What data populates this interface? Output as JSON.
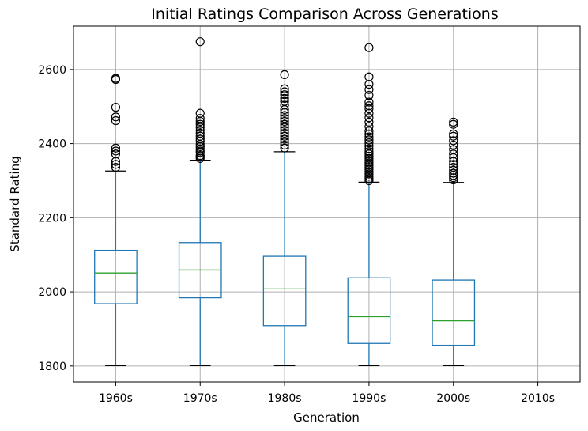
{
  "chart_data": {
    "type": "box",
    "title": "Initial Ratings Comparison Across Generations",
    "xlabel": "Generation",
    "ylabel": "Standard Rating",
    "categories": [
      "1960s",
      "1970s",
      "1980s",
      "1990s",
      "2000s",
      "2010s"
    ],
    "ylim": [
      1757,
      2717
    ],
    "yticks": [
      1800,
      2000,
      2200,
      2400,
      2600
    ],
    "ytick_labels": [
      "1800",
      "2000",
      "2200",
      "2400",
      "2600"
    ],
    "grid": true,
    "colors": {
      "box": "#1f77b4",
      "median": "#2ca02c",
      "outlier": "#000000",
      "grid": "#b0b0b0"
    },
    "boxes": [
      {
        "category": "1960s",
        "whisker_low": 1801,
        "q1": 1968,
        "median": 2051,
        "q3": 2112,
        "whisker_high": 2326,
        "outliers": [
          2336,
          2344,
          2352,
          2372,
          2380,
          2388,
          2462,
          2472,
          2498,
          2573,
          2576
        ]
      },
      {
        "category": "1970s",
        "whisker_low": 1801,
        "q1": 1984,
        "median": 2059,
        "q3": 2133,
        "whisker_high": 2355,
        "outliers": [
          2360,
          2364,
          2368,
          2376,
          2380,
          2386,
          2392,
          2398,
          2406,
          2412,
          2420,
          2428,
          2436,
          2444,
          2452,
          2460,
          2468,
          2482,
          2675
        ]
      },
      {
        "category": "1980s",
        "whisker_low": 1801,
        "q1": 1909,
        "median": 2008,
        "q3": 2096,
        "whisker_high": 2378,
        "outliers": [
          2388,
          2396,
          2404,
          2412,
          2420,
          2428,
          2436,
          2444,
          2452,
          2460,
          2468,
          2476,
          2484,
          2492,
          2504,
          2514,
          2522,
          2532,
          2540,
          2548,
          2586
        ]
      },
      {
        "category": "1990s",
        "whisker_low": 1801,
        "q1": 1861,
        "median": 1933,
        "q3": 2038,
        "whisker_high": 2296,
        "outliers": [
          2300,
          2306,
          2312,
          2318,
          2324,
          2330,
          2336,
          2342,
          2348,
          2354,
          2360,
          2366,
          2372,
          2378,
          2386,
          2394,
          2402,
          2410,
          2418,
          2426,
          2434,
          2446,
          2458,
          2470,
          2482,
          2494,
          2502,
          2512,
          2530,
          2546,
          2560,
          2580,
          2659
        ]
      },
      {
        "category": "2000s",
        "whisker_low": 1801,
        "q1": 1856,
        "median": 1922,
        "q3": 2032,
        "whisker_high": 2295,
        "outliers": [
          2302,
          2308,
          2314,
          2320,
          2328,
          2336,
          2344,
          2352,
          2362,
          2372,
          2384,
          2396,
          2408,
          2420,
          2426,
          2452,
          2458
        ]
      },
      {
        "category": "2010s",
        "empty": true
      }
    ]
  }
}
